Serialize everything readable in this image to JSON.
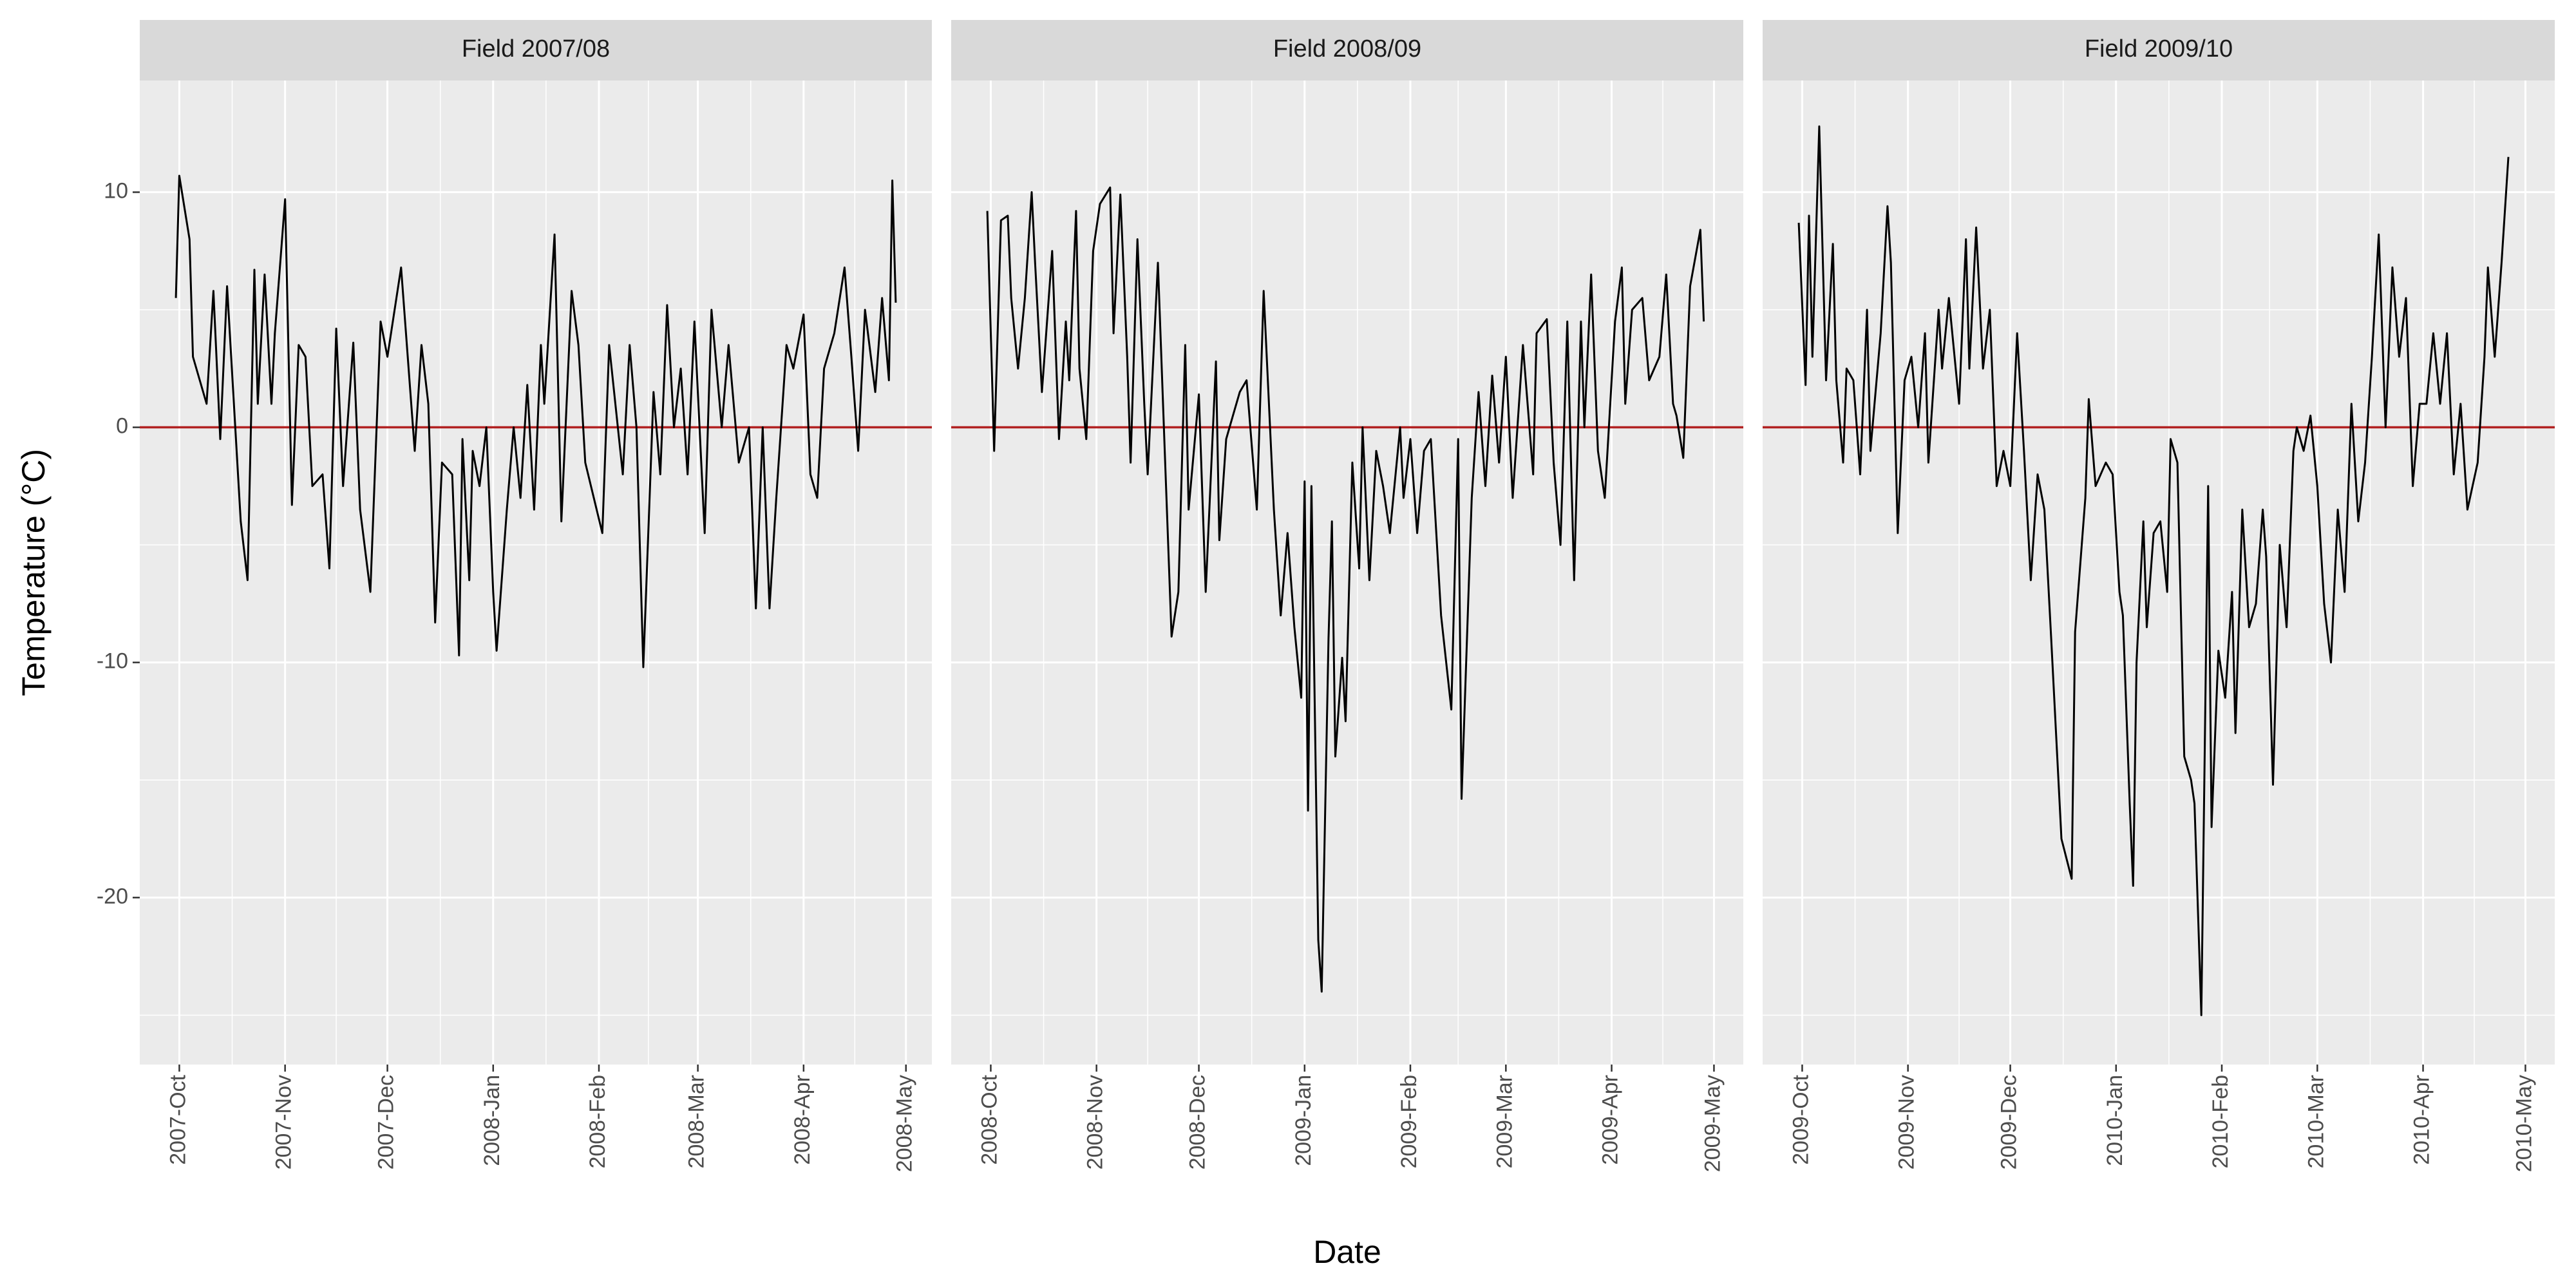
{
  "xlabel": "Date",
  "ylabel": "Temperature (°C)",
  "chart_data": [
    {
      "type": "line",
      "title": "Field 2007/08",
      "color": "#000000",
      "hline": 0,
      "hline_color": "#b22222",
      "xlim": [
        -11.6,
        220.6
      ],
      "ylim": [
        -27.1,
        14.75
      ],
      "yticks": [
        -20,
        -10,
        0,
        10
      ],
      "grid": true,
      "xticks": [
        {
          "value": 0,
          "label": "2007-Oct"
        },
        {
          "value": 31,
          "label": "2007-Nov"
        },
        {
          "value": 61,
          "label": "2007-Dec"
        },
        {
          "value": 92,
          "label": "2008-Jan"
        },
        {
          "value": 123,
          "label": "2008-Feb"
        },
        {
          "value": 152,
          "label": "2008-Mar"
        },
        {
          "value": 183,
          "label": "2008-Apr"
        },
        {
          "value": 213,
          "label": "2008-May"
        }
      ],
      "x": [
        -1,
        0,
        3,
        4,
        8,
        10,
        12,
        14,
        18,
        20,
        22,
        23,
        25,
        27,
        28,
        31,
        33,
        35,
        37,
        39,
        42,
        44,
        46,
        48,
        51,
        53,
        56,
        59,
        61,
        65,
        69,
        71,
        73,
        75,
        77,
        80,
        82,
        83,
        85,
        86,
        88,
        90,
        92,
        93,
        96,
        98,
        100,
        102,
        104,
        106,
        107,
        110,
        112,
        115,
        117,
        119,
        124,
        126,
        130,
        132,
        134,
        136,
        139,
        141,
        143,
        145,
        147,
        149,
        151,
        154,
        156,
        159,
        161,
        164,
        167,
        169,
        171,
        173,
        175,
        178,
        180,
        183,
        185,
        187,
        189,
        192,
        195,
        197,
        199,
        201,
        204,
        206,
        208,
        209,
        210
      ],
      "values": [
        5.5,
        10.7,
        8,
        3,
        1,
        5.8,
        -0.5,
        6,
        -4,
        -6.5,
        6.7,
        1,
        6.5,
        1,
        4,
        9.7,
        -3.3,
        3.5,
        3,
        -2.5,
        -2,
        -6,
        4.2,
        -2.5,
        3.6,
        -3.5,
        -7,
        4.5,
        3,
        6.8,
        -1,
        3.5,
        1,
        -8.3,
        -1.5,
        -2,
        -9.7,
        -0.5,
        -6.5,
        -1,
        -2.5,
        0,
        -7,
        -9.5,
        -3.5,
        0,
        -3,
        1.8,
        -3.5,
        3.5,
        1,
        8.2,
        -4,
        5.8,
        3.5,
        -1.5,
        -4.5,
        3.5,
        -2,
        3.5,
        0,
        -10.2,
        1.5,
        -2,
        5.2,
        0,
        2.5,
        -2,
        4.5,
        -4.5,
        5,
        0,
        3.5,
        -1.5,
        0,
        -7.7,
        0,
        -7.7,
        -3,
        3.5,
        2.5,
        4.8,
        -2,
        -3,
        2.5,
        4,
        6.8,
        3,
        -1,
        5,
        1.5,
        5.5,
        2,
        10.5,
        5.3
      ]
    },
    {
      "type": "line",
      "title": "Field 2008/09",
      "color": "#000000",
      "hline": 0,
      "hline_color": "#b22222",
      "xlim": [
        -11.6,
        220.6
      ],
      "ylim": [
        -27.1,
        14.75
      ],
      "yticks": [
        -20,
        -10,
        0,
        10
      ],
      "grid": true,
      "xticks": [
        {
          "value": 0,
          "label": "2008-Oct"
        },
        {
          "value": 31,
          "label": "2008-Nov"
        },
        {
          "value": 61,
          "label": "2008-Dec"
        },
        {
          "value": 92,
          "label": "2009-Jan"
        },
        {
          "value": 123,
          "label": "2009-Feb"
        },
        {
          "value": 151,
          "label": "2009-Mar"
        },
        {
          "value": 182,
          "label": "2009-Apr"
        },
        {
          "value": 212,
          "label": "2009-May"
        }
      ],
      "x": [
        -1,
        1,
        3,
        5,
        6,
        8,
        10,
        12,
        13,
        15,
        18,
        20,
        22,
        23,
        25,
        26,
        28,
        30,
        32,
        35,
        36,
        38,
        40,
        41,
        43,
        45,
        46,
        49,
        51,
        53,
        55,
        57,
        58,
        61,
        63,
        66,
        67,
        69,
        71,
        73,
        75,
        78,
        80,
        83,
        85,
        87,
        89,
        91,
        92,
        93,
        94,
        96,
        97,
        99,
        100,
        101,
        103,
        104,
        106,
        108,
        109,
        111,
        113,
        115,
        117,
        120,
        121,
        123,
        125,
        127,
        129,
        132,
        135,
        137,
        138,
        141,
        143,
        145,
        147,
        149,
        151,
        153,
        156,
        159,
        160,
        163,
        165,
        167,
        169,
        171,
        173,
        174,
        176,
        178,
        180,
        183,
        185,
        186,
        188,
        191,
        193,
        196,
        198,
        200,
        201,
        203,
        205,
        208,
        209
      ],
      "values": [
        9.2,
        -1,
        8.8,
        9,
        5.5,
        2.5,
        5.5,
        10,
        7,
        1.5,
        7.5,
        -0.5,
        4.5,
        2,
        9.2,
        2.5,
        -0.5,
        7.5,
        9.5,
        10.2,
        4,
        9.9,
        3,
        -1.5,
        8,
        1,
        -2,
        7,
        -1,
        -8.9,
        -7,
        3.5,
        -3.5,
        1.4,
        -7,
        2.8,
        -4.8,
        -0.5,
        0.5,
        1.5,
        2,
        -3.5,
        5.8,
        -3.5,
        -8,
        -4.5,
        -8.5,
        -11.5,
        -2.3,
        -16.3,
        -2.5,
        -21.8,
        -24,
        -9,
        -4,
        -14,
        -9.8,
        -12.5,
        -1.5,
        -6,
        0,
        -6.5,
        -1,
        -2.5,
        -4.5,
        0,
        -3,
        -0.5,
        -4.5,
        -1,
        -0.5,
        -8,
        -12,
        -0.5,
        -15.8,
        -3,
        1.5,
        -2.5,
        2.2,
        -1.5,
        3,
        -3,
        3.5,
        -2,
        4,
        4.6,
        -1.5,
        -5,
        4.5,
        -6.5,
        4.5,
        0,
        6.5,
        -1,
        -3,
        4.5,
        6.8,
        1,
        5,
        5.5,
        2,
        3,
        6.5,
        1,
        0.5,
        -1.3,
        6,
        8.4,
        4.5
      ]
    },
    {
      "type": "line",
      "title": "Field 2009/10",
      "color": "#000000",
      "hline": 0,
      "hline_color": "#b22222",
      "xlim": [
        -11.6,
        220.6
      ],
      "ylim": [
        -27.1,
        14.75
      ],
      "yticks": [
        -20,
        -10,
        0,
        10
      ],
      "grid": true,
      "xticks": [
        {
          "value": 0,
          "label": "2009-Oct"
        },
        {
          "value": 31,
          "label": "2009-Nov"
        },
        {
          "value": 61,
          "label": "2009-Dec"
        },
        {
          "value": 92,
          "label": "2010-Jan"
        },
        {
          "value": 123,
          "label": "2010-Feb"
        },
        {
          "value": 151,
          "label": "2010-Mar"
        },
        {
          "value": 182,
          "label": "2010-Apr"
        },
        {
          "value": 212,
          "label": "2010-May"
        }
      ],
      "x": [
        -1,
        1,
        2,
        3,
        5,
        7,
        9,
        10,
        12,
        13,
        15,
        17,
        19,
        20,
        23,
        25,
        26,
        28,
        30,
        32,
        34,
        36,
        37,
        40,
        41,
        43,
        46,
        48,
        49,
        51,
        53,
        55,
        57,
        59,
        61,
        63,
        65,
        67,
        69,
        71,
        73,
        76,
        79,
        80,
        83,
        84,
        86,
        89,
        91,
        93,
        94,
        96,
        97,
        98,
        100,
        101,
        103,
        105,
        107,
        108,
        110,
        112,
        114,
        115,
        117,
        119,
        120,
        122,
        124,
        126,
        127,
        129,
        131,
        133,
        135,
        136,
        138,
        140,
        142,
        144,
        145,
        147,
        149,
        151,
        153,
        155,
        157,
        159,
        161,
        163,
        165,
        167,
        169,
        171,
        173,
        175,
        177,
        179,
        181,
        183,
        185,
        187,
        189,
        191,
        193,
        195,
        198,
        200,
        201,
        203,
        205,
        207
      ],
      "values": [
        8.7,
        1.8,
        9,
        3,
        12.8,
        2,
        7.8,
        2,
        -1.5,
        2.5,
        2,
        -2,
        5,
        -1,
        4,
        9.4,
        7,
        -4.5,
        2,
        3,
        0,
        4,
        -1.5,
        5,
        2.5,
        5.5,
        1,
        8,
        2.5,
        8.5,
        2.5,
        5,
        -2.5,
        -1,
        -2.5,
        4,
        -1,
        -6.5,
        -2,
        -3.5,
        -9,
        -17.5,
        -19.2,
        -8.7,
        -3,
        1.2,
        -2.5,
        -1.5,
        -2,
        -7,
        -8,
        -16,
        -19.5,
        -10,
        -4,
        -8.5,
        -4.5,
        -4,
        -7,
        -0.5,
        -1.5,
        -14,
        -15,
        -16,
        -25,
        -2.5,
        -17,
        -9.5,
        -11.5,
        -7,
        -13,
        -3.5,
        -8.5,
        -7.5,
        -3.5,
        -5.5,
        -15.2,
        -5,
        -8.5,
        -1,
        0,
        -1,
        0.5,
        -2.5,
        -7.5,
        -10,
        -3.5,
        -7,
        1,
        -4,
        -1.5,
        3,
        8.2,
        0,
        6.8,
        3,
        5.5,
        -2.5,
        1,
        1,
        4,
        1,
        4,
        -2,
        1,
        -3.5,
        -1.5,
        3,
        6.8,
        3,
        7,
        11.5
      ]
    }
  ]
}
